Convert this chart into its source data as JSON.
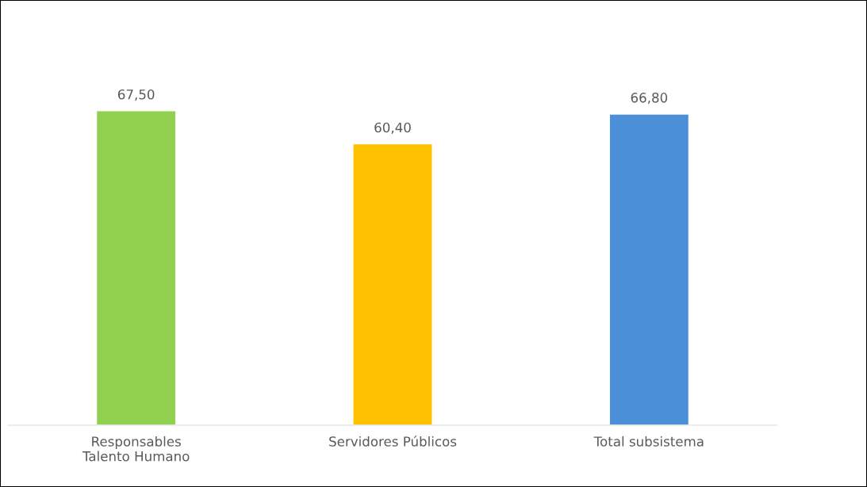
{
  "chart_data": {
    "type": "bar",
    "categories": [
      "Responsables\nTalento Humano",
      "Servidores Públicos",
      "Total subsistema"
    ],
    "values": [
      67.5,
      60.4,
      66.8
    ],
    "colors": [
      "#92d050",
      "#ffc000",
      "#4a8fd8"
    ],
    "value_labels": [
      "67,50",
      "60,40",
      "66,80"
    ],
    "tick_labels": "x",
    "grid": false,
    "legend": false
  }
}
